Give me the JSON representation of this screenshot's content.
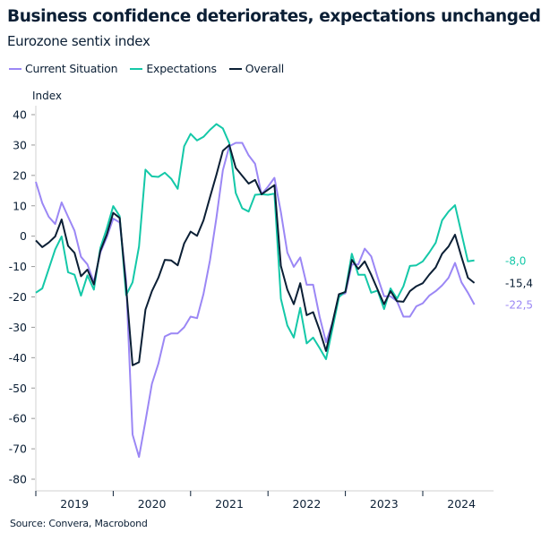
{
  "title": "Business confidence deteriorates, expectations unchanged",
  "subtitle": "Eurozone sentix index",
  "source": "Source: Convera, Macrobond",
  "chart_data": {
    "type": "line",
    "ylabel": "Index",
    "xlabel": "",
    "ylim": [
      -84,
      43
    ],
    "yticks": [
      40,
      30,
      20,
      10,
      0,
      -10,
      -20,
      -30,
      -40,
      -50,
      -60,
      -70,
      -80
    ],
    "x_start": "2019-01",
    "x_frequency": "monthly",
    "x_tick_labels": [
      "2019",
      "2020",
      "2021",
      "2022",
      "2023",
      "2024"
    ],
    "grid": false,
    "legend_position": "top-left",
    "series": [
      {
        "name": "Current Situation",
        "color": "#9b87f5",
        "end_label": "-22,5",
        "values": [
          17.9,
          10.9,
          6.4,
          4.0,
          11.1,
          6.4,
          1.8,
          -6.8,
          -9.3,
          -15.2,
          -5.4,
          -0.4,
          5.8,
          4.5,
          -14.7,
          -65.3,
          -72.7,
          -60.9,
          -48.6,
          -42,
          -33,
          -32,
          -32,
          -30,
          -26.5,
          -27,
          -19,
          -8,
          6,
          21.7,
          29.6,
          30.7,
          30.7,
          26.6,
          23.8,
          13.8,
          16.3,
          19.2,
          7.9,
          -5.4,
          -10.1,
          -7.0,
          -16.0,
          -16.0,
          -26.5,
          -34.9,
          -28.5,
          -19.6,
          -18.8,
          -9.3,
          -9.3,
          -4.1,
          -6.6,
          -13.5,
          -19.8,
          -19.8,
          -21.4,
          -26.5,
          -26.5,
          -23.1,
          -22.1,
          -19.6,
          -18.1,
          -16.2,
          -13.7,
          -8.8,
          -15.2,
          -18.6,
          -22.5
        ]
      },
      {
        "name": "Expectations",
        "color": "#14c8a8",
        "end_label": "-8,0",
        "values": [
          -18.6,
          -17.2,
          -10.8,
          -4.4,
          -0.1,
          -11.9,
          -12.7,
          -19.6,
          -12.9,
          -17.6,
          -3.9,
          2.5,
          9.9,
          6.6,
          -19.4,
          -15.2,
          -3.4,
          21.9,
          19.7,
          19.5,
          20.9,
          18.9,
          15.6,
          29.6,
          33.7,
          31.5,
          32.7,
          35.0,
          36.9,
          35.5,
          30.6,
          14.2,
          9.2,
          8.1,
          13.6,
          13.8,
          13.6,
          14.0,
          -20.6,
          -29.4,
          -33.4,
          -23.6,
          -35.3,
          -33.4,
          -36.8,
          -40.5,
          -30.4,
          -20.1,
          -18.1,
          -5.8,
          -12.7,
          -12.7,
          -18.6,
          -17.9,
          -24.0,
          -17.2,
          -20.6,
          -16.5,
          -9.8,
          -9.6,
          -8.3,
          -5.4,
          -2.2,
          5.2,
          8.1,
          10.2,
          1.0,
          -8.3,
          -8.0
        ]
      },
      {
        "name": "Overall",
        "color": "#0b1f35",
        "end_label": "-15,4",
        "values": [
          -1.4,
          -3.6,
          -2.1,
          -0.1,
          5.5,
          -3.2,
          -5.5,
          -13.2,
          -11.0,
          -15.9,
          -4.9,
          0.5,
          7.7,
          6.0,
          -16.7,
          -42.5,
          -41.5,
          -24.2,
          -18.1,
          -13.7,
          -7.8,
          -8.0,
          -9.6,
          -2.4,
          1.5,
          0.1,
          5.2,
          12.8,
          20.2,
          28.1,
          30.0,
          22.5,
          19.9,
          17.3,
          18.5,
          13.8,
          15.3,
          16.8,
          -9.8,
          -17.6,
          -22.4,
          -15.5,
          -26.0,
          -25.0,
          -30.9,
          -37.8,
          -28.5,
          -19.1,
          -18.4,
          -7.8,
          -10.8,
          -8.3,
          -12.7,
          -17.6,
          -22.4,
          -18.1,
          -21.4,
          -21.6,
          -18.1,
          -16.5,
          -15.5,
          -12.7,
          -10.3,
          -5.8,
          -3.4,
          0.5,
          -6.8,
          -13.7,
          -15.4
        ]
      }
    ]
  }
}
